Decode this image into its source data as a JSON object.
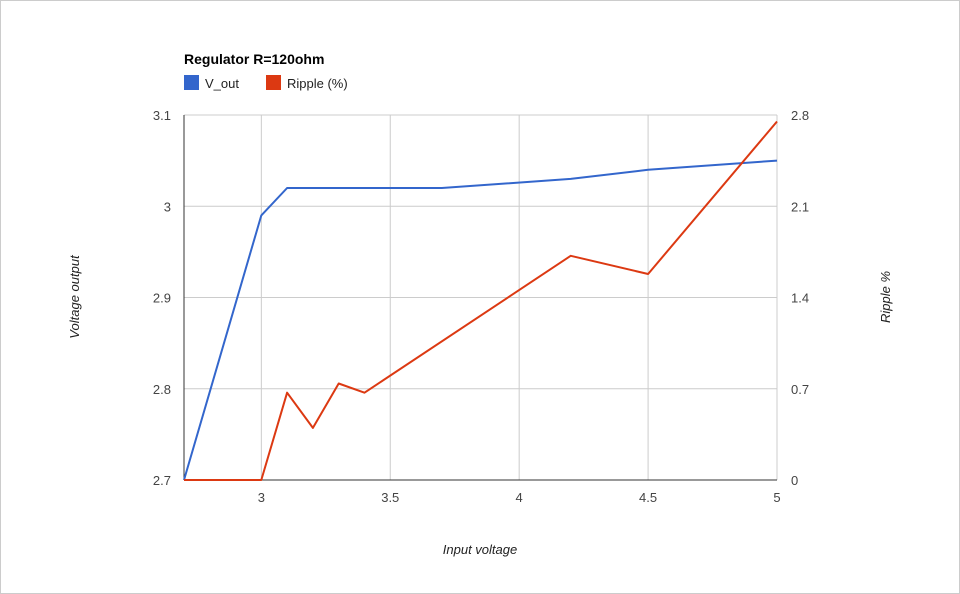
{
  "chart_data": {
    "type": "line",
    "title": "Regulator R=120ohm",
    "xlabel": "Input voltage",
    "ylabel": "Voltage output",
    "y2label": "Ripple %",
    "xlim": [
      2.7,
      5
    ],
    "ylim": [
      2.7,
      3.1
    ],
    "y2lim": [
      0,
      2.8
    ],
    "x_ticks": [
      "3",
      "3.5",
      "4",
      "4.5",
      "5"
    ],
    "y_ticks": [
      "2.7",
      "2.8",
      "2.9",
      "3",
      "3.1"
    ],
    "y2_ticks": [
      "0",
      "0.7",
      "1.4",
      "2.1",
      "2.8"
    ],
    "grid": true,
    "legend": "top-left",
    "series": [
      {
        "name": "V_out",
        "axis": "left",
        "color": "#3366cc",
        "x": [
          2.7,
          3.0,
          3.1,
          3.7,
          4.2,
          4.5,
          5.0
        ],
        "y": [
          2.7,
          2.99,
          3.02,
          3.02,
          3.03,
          3.04,
          3.05
        ]
      },
      {
        "name": "Ripple (%)",
        "axis": "right",
        "color": "#dc3912",
        "x": [
          2.7,
          3.0,
          3.1,
          3.2,
          3.3,
          3.4,
          4.2,
          4.5,
          5.0
        ],
        "y": [
          0,
          0,
          0.67,
          0.4,
          0.74,
          0.67,
          1.72,
          1.58,
          2.75
        ]
      }
    ]
  }
}
